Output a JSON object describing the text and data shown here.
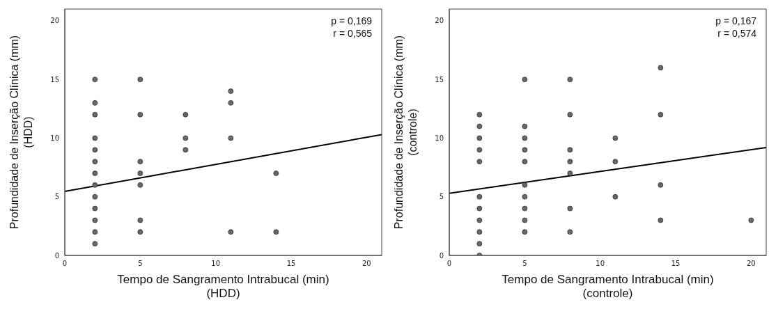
{
  "chart_data": [
    {
      "type": "scatter",
      "xlabel": "Tempo de Sangramento Intrabucal (min)\n(HDD)",
      "ylabel": "Profundidade de Inserção Clínica (mm)\n(HDD)",
      "annotations": [
        "p = 0,169",
        "r = 0,565"
      ],
      "xlim": [
        0,
        21
      ],
      "ylim": [
        0,
        21
      ],
      "xticks": [
        0,
        5,
        10,
        15,
        20
      ],
      "yticks": [
        0,
        5,
        10,
        15,
        20
      ],
      "grid": false,
      "legend": false,
      "series": [
        {
          "marker": "circle",
          "color": "#666666",
          "x": [
            2,
            2,
            2,
            2,
            2,
            2,
            2,
            2,
            2,
            2,
            2,
            2,
            2,
            5,
            5,
            5,
            5,
            5,
            5,
            5,
            8,
            8,
            8,
            11,
            11,
            11,
            11,
            14,
            14
          ],
          "values": [
            15,
            13,
            12,
            10,
            9,
            8,
            7,
            6,
            5,
            4,
            3,
            2,
            1,
            15,
            12,
            8,
            7,
            6,
            3,
            2,
            12,
            10,
            9,
            14,
            13,
            10,
            2,
            7,
            2
          ]
        },
        {
          "type": "line",
          "color": "#000000",
          "x": [
            0,
            21
          ],
          "values": [
            5.45,
            10.3
          ]
        }
      ]
    },
    {
      "type": "scatter",
      "xlabel": "Tempo de Sangramento Intrabucal (min)\n(controle)",
      "ylabel": "Profundidade de Inserção Clínica (mm)\n(controle)",
      "annotations": [
        "p = 0,167",
        "r = 0,574"
      ],
      "xlim": [
        0,
        21
      ],
      "ylim": [
        0,
        21
      ],
      "xticks": [
        0,
        5,
        10,
        15,
        20
      ],
      "yticks": [
        0,
        5,
        10,
        15,
        20
      ],
      "grid": false,
      "legend": false,
      "series": [
        {
          "marker": "circle",
          "color": "#666666",
          "x": [
            2,
            2,
            2,
            2,
            2,
            2,
            2,
            2,
            2,
            2,
            2,
            5,
            5,
            5,
            5,
            5,
            5,
            5,
            5,
            5,
            5,
            8,
            8,
            8,
            8,
            8,
            8,
            8,
            11,
            11,
            11,
            14,
            14,
            14,
            14,
            20
          ],
          "values": [
            12,
            11,
            10,
            9,
            8,
            5,
            4,
            3,
            2,
            1,
            0,
            15,
            11,
            10,
            9,
            8,
            6,
            5,
            4,
            3,
            2,
            15,
            12,
            9,
            8,
            7,
            4,
            2,
            10,
            8,
            5,
            16,
            12,
            6,
            3,
            3
          ]
        },
        {
          "type": "line",
          "color": "#000000",
          "x": [
            0,
            21
          ],
          "values": [
            5.3,
            9.2
          ]
        }
      ]
    }
  ]
}
